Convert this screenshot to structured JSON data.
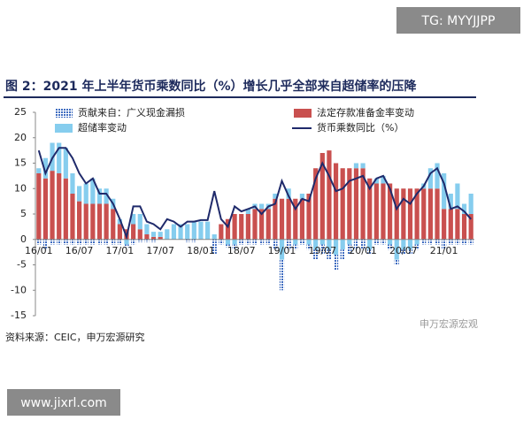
{
  "chart_data": {
    "type": "stacked-bar-line",
    "title": "图 2：2021 年上半年货币乘数同比（%）增长几乎全部来自超储率的压降",
    "source": "资料来源：CEIC，申万宏源研究",
    "watermarks": [
      "TG: MYYJJPP",
      "www.jixrl.com",
      "申万宏源宏观"
    ],
    "categories": [
      "16/01",
      null,
      null,
      null,
      null,
      null,
      "16/07",
      null,
      null,
      null,
      null,
      null,
      "17/01",
      null,
      null,
      null,
      null,
      null,
      "17/07",
      null,
      null,
      null,
      null,
      null,
      "18/01",
      null,
      null,
      null,
      null,
      null,
      "18/07",
      null,
      null,
      null,
      null,
      null,
      "19/01",
      null,
      null,
      null,
      null,
      null,
      "19/07",
      null,
      null,
      null,
      null,
      null,
      "20/01",
      null,
      null,
      null,
      null,
      null,
      "20/07",
      null,
      null,
      null,
      null,
      null,
      "21/01",
      null,
      null,
      null,
      null
    ],
    "ylim": [
      -15,
      25
    ],
    "yticks": [
      -15,
      -10,
      -5,
      0,
      5,
      10,
      15,
      20,
      25
    ],
    "series": [
      {
        "name": "贡献来自：广义现金漏损",
        "type": "bar",
        "color": "#3f6cc0",
        "pattern": "hatch",
        "values": [
          -1,
          -2,
          -1,
          -1,
          -1,
          -1,
          -1,
          -1,
          -1,
          -1,
          -1,
          -1,
          -1,
          -0.5,
          -1,
          -0.5,
          -0.5,
          -0.5,
          0,
          0,
          0,
          0,
          -0.5,
          -0.5,
          0,
          0,
          -3,
          -1,
          -0.5,
          -1,
          -1,
          -1,
          -1,
          -1,
          -1,
          -2,
          -6,
          -2,
          -1,
          -1,
          -1,
          -2,
          -2,
          -2,
          -3,
          -2,
          -2,
          -2,
          -2,
          -1,
          -1,
          -1,
          -1,
          -1,
          -1,
          -1,
          -1,
          -1,
          -1,
          -1,
          -2,
          -1,
          -1,
          -1,
          -1
        ]
      },
      {
        "name": "法定存款准备金率变动",
        "type": "bar",
        "color": "#c9504f",
        "values": [
          13,
          12,
          13.5,
          13,
          12,
          9,
          7.5,
          7,
          7,
          7,
          7,
          6,
          3,
          2,
          3,
          2,
          1,
          0.5,
          0.5,
          0,
          0,
          0,
          0,
          0,
          0,
          0,
          0,
          3,
          4,
          5,
          5,
          5,
          6,
          6,
          6,
          8,
          8,
          8,
          8,
          8,
          9,
          14,
          17,
          17.5,
          15,
          14,
          14,
          14,
          14,
          12,
          11,
          11,
          11,
          10,
          10,
          10,
          10,
          10,
          10,
          10,
          6,
          6,
          6,
          5,
          5
        ]
      },
      {
        "name": "超储率变动",
        "type": "bar",
        "color": "#86cdee",
        "values": [
          1,
          4,
          5.5,
          6,
          6,
          4,
          3,
          4,
          5,
          3,
          3,
          2,
          1,
          -1,
          2,
          3,
          2,
          1,
          1,
          2,
          3,
          3,
          3,
          3.5,
          3.5,
          3.5,
          1,
          0,
          -1,
          -1,
          0,
          1,
          1,
          1,
          1,
          1,
          -4,
          2,
          -1,
          1,
          -1,
          -2,
          -1,
          -2,
          -3,
          -2,
          -1,
          1,
          1,
          -2,
          1,
          1.5,
          -1,
          -4,
          -2,
          -2,
          -1,
          1,
          4,
          5,
          7,
          3,
          5,
          2,
          4
        ]
      },
      {
        "name": "货币乘数同比（%）",
        "type": "line",
        "color": "#1f2a6b",
        "values": [
          17.5,
          13,
          16,
          18,
          18,
          16,
          13,
          11,
          12,
          9,
          9,
          7,
          4,
          0.5,
          6.5,
          6.5,
          3.5,
          3,
          2,
          4,
          3.5,
          2.5,
          3.5,
          3.5,
          3.8,
          3.8,
          9.5,
          4,
          2.5,
          6.5,
          5.5,
          6,
          6.5,
          5,
          6.5,
          7,
          11.5,
          8.5,
          6,
          8,
          7.5,
          12,
          15,
          12.5,
          9.5,
          10,
          11.5,
          12,
          12.5,
          10,
          12,
          12.5,
          10,
          6,
          8,
          7,
          9,
          10.5,
          13,
          14,
          11,
          6,
          6.5,
          5.5,
          4
        ]
      }
    ]
  }
}
